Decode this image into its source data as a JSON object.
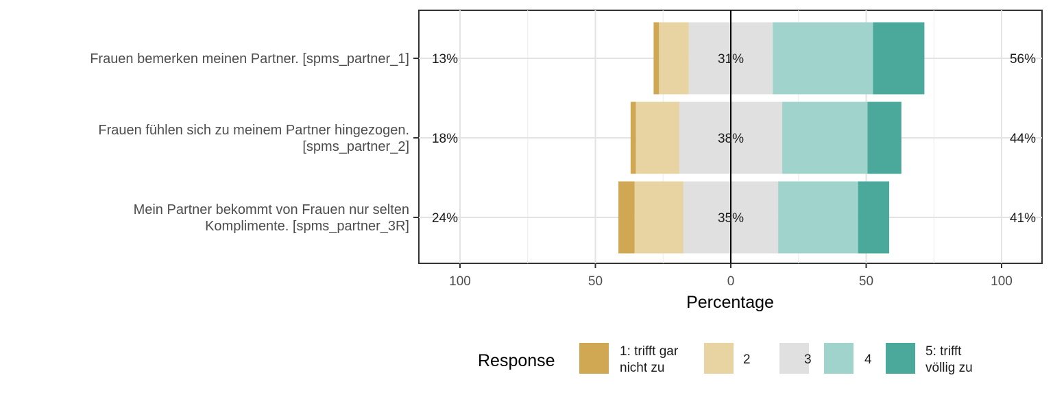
{
  "chart_data": {
    "type": "bar",
    "orientation": "horizontal-diverging",
    "xlabel": "Percentage",
    "x_ticks": [
      "100",
      "50",
      "0",
      "50",
      "100"
    ],
    "xlim": [
      -100,
      100
    ],
    "grid": true,
    "legend": {
      "title": "Response",
      "position": "bottom",
      "entries": [
        {
          "label_lines": [
            "1: trifft gar",
            "nicht zu"
          ],
          "color": "#D0A854"
        },
        {
          "label_lines": [
            "2"
          ],
          "color": "#E8D3A3"
        },
        {
          "label_lines": [
            "3"
          ],
          "color": "#E0E0E0"
        },
        {
          "label_lines": [
            "4"
          ],
          "color": "#9FD3CB"
        },
        {
          "label_lines": [
            "5: trifft",
            "völlig zu"
          ],
          "color": "#4BA99B"
        }
      ]
    },
    "items": [
      {
        "label_lines": [
          "Frauen bemerken meinen Partner. [spms_partner_1]"
        ],
        "values": [
          2,
          11,
          31,
          37,
          19
        ],
        "low_label": "13%",
        "neutral_label": "31%",
        "high_label": "56%"
      },
      {
        "label_lines": [
          "Frauen fühlen sich zu meinem Partner hingezogen.",
          "[spms_partner_2]"
        ],
        "values": [
          2,
          16,
          38,
          31.5,
          12.5
        ],
        "low_label": "18%",
        "neutral_label": "38%",
        "high_label": "44%"
      },
      {
        "label_lines": [
          "Mein Partner bekommt von Frauen nur selten",
          "Komplimente. [spms_partner_3R]"
        ],
        "values": [
          6,
          18,
          35,
          29.5,
          11.5
        ],
        "low_label": "24%",
        "neutral_label": "35%",
        "high_label": "41%"
      }
    ]
  }
}
